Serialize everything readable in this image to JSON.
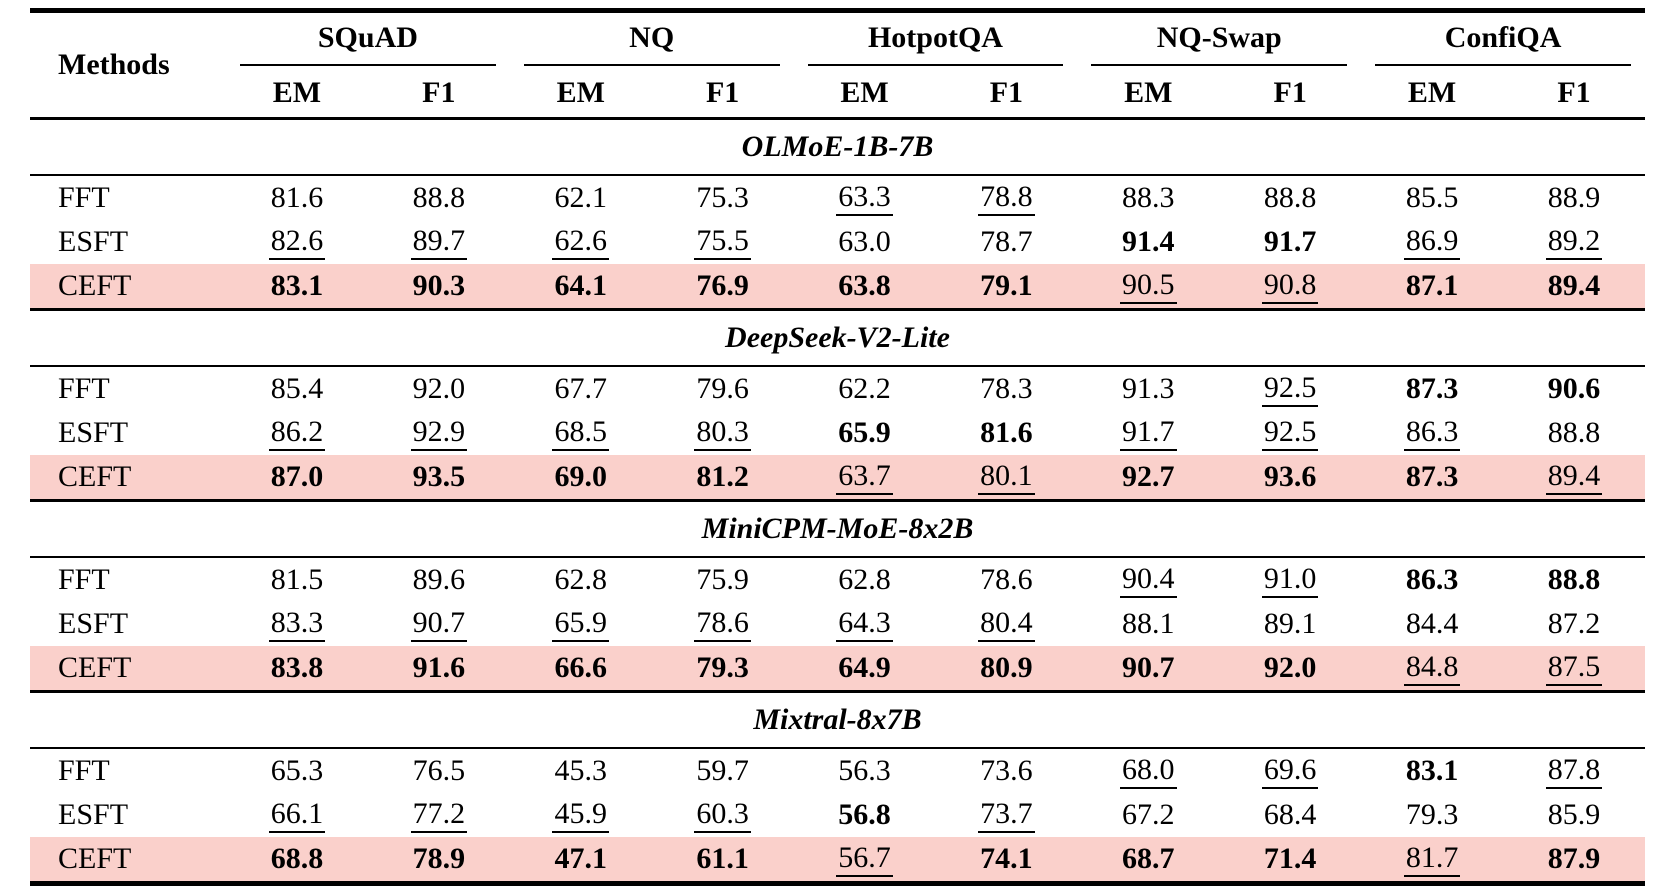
{
  "table": {
    "methods_header": "Methods",
    "datasets": [
      "SQuAD",
      "NQ",
      "HotpotQA",
      "NQ-Swap",
      "ConfiQA"
    ],
    "metric_headers": [
      "EM",
      "F1"
    ],
    "sections": [
      {
        "model": "OLMoE-1B-7B",
        "rows": [
          {
            "method": "FFT",
            "highlight": false,
            "cells": [
              [
                "81.6",
                ""
              ],
              [
                "88.8",
                ""
              ],
              [
                "62.1",
                ""
              ],
              [
                "75.3",
                ""
              ],
              [
                "63.3",
                "u"
              ],
              [
                "78.8",
                "u"
              ],
              [
                "88.3",
                ""
              ],
              [
                "88.8",
                ""
              ],
              [
                "85.5",
                ""
              ],
              [
                "88.9",
                ""
              ]
            ]
          },
          {
            "method": "ESFT",
            "highlight": false,
            "cells": [
              [
                "82.6",
                "u"
              ],
              [
                "89.7",
                "u"
              ],
              [
                "62.6",
                "u"
              ],
              [
                "75.5",
                "u"
              ],
              [
                "63.0",
                ""
              ],
              [
                "78.7",
                ""
              ],
              [
                "91.4",
                "b"
              ],
              [
                "91.7",
                "b"
              ],
              [
                "86.9",
                "u"
              ],
              [
                "89.2",
                "u"
              ]
            ]
          },
          {
            "method": "CEFT",
            "highlight": true,
            "cells": [
              [
                "83.1",
                "b"
              ],
              [
                "90.3",
                "b"
              ],
              [
                "64.1",
                "b"
              ],
              [
                "76.9",
                "b"
              ],
              [
                "63.8",
                "b"
              ],
              [
                "79.1",
                "b"
              ],
              [
                "90.5",
                "u"
              ],
              [
                "90.8",
                "u"
              ],
              [
                "87.1",
                "b"
              ],
              [
                "89.4",
                "b"
              ]
            ]
          }
        ]
      },
      {
        "model": "DeepSeek-V2-Lite",
        "rows": [
          {
            "method": "FFT",
            "highlight": false,
            "cells": [
              [
                "85.4",
                ""
              ],
              [
                "92.0",
                ""
              ],
              [
                "67.7",
                ""
              ],
              [
                "79.6",
                ""
              ],
              [
                "62.2",
                ""
              ],
              [
                "78.3",
                ""
              ],
              [
                "91.3",
                ""
              ],
              [
                "92.5",
                "u"
              ],
              [
                "87.3",
                "b"
              ],
              [
                "90.6",
                "b"
              ]
            ]
          },
          {
            "method": "ESFT",
            "highlight": false,
            "cells": [
              [
                "86.2",
                "u"
              ],
              [
                "92.9",
                "u"
              ],
              [
                "68.5",
                "u"
              ],
              [
                "80.3",
                "u"
              ],
              [
                "65.9",
                "b"
              ],
              [
                "81.6",
                "b"
              ],
              [
                "91.7",
                "u"
              ],
              [
                "92.5",
                "u"
              ],
              [
                "86.3",
                "u"
              ],
              [
                "88.8",
                ""
              ]
            ]
          },
          {
            "method": "CEFT",
            "highlight": true,
            "cells": [
              [
                "87.0",
                "b"
              ],
              [
                "93.5",
                "b"
              ],
              [
                "69.0",
                "b"
              ],
              [
                "81.2",
                "b"
              ],
              [
                "63.7",
                "u"
              ],
              [
                "80.1",
                "u"
              ],
              [
                "92.7",
                "b"
              ],
              [
                "93.6",
                "b"
              ],
              [
                "87.3",
                "b"
              ],
              [
                "89.4",
                "u"
              ]
            ]
          }
        ]
      },
      {
        "model": "MiniCPM-MoE-8x2B",
        "rows": [
          {
            "method": "FFT",
            "highlight": false,
            "cells": [
              [
                "81.5",
                ""
              ],
              [
                "89.6",
                ""
              ],
              [
                "62.8",
                ""
              ],
              [
                "75.9",
                ""
              ],
              [
                "62.8",
                ""
              ],
              [
                "78.6",
                ""
              ],
              [
                "90.4",
                "u"
              ],
              [
                "91.0",
                "u"
              ],
              [
                "86.3",
                "b"
              ],
              [
                "88.8",
                "b"
              ]
            ]
          },
          {
            "method": "ESFT",
            "highlight": false,
            "cells": [
              [
                "83.3",
                "u"
              ],
              [
                "90.7",
                "u"
              ],
              [
                "65.9",
                "u"
              ],
              [
                "78.6",
                "u"
              ],
              [
                "64.3",
                "u"
              ],
              [
                "80.4",
                "u"
              ],
              [
                "88.1",
                ""
              ],
              [
                "89.1",
                ""
              ],
              [
                "84.4",
                ""
              ],
              [
                "87.2",
                ""
              ]
            ]
          },
          {
            "method": "CEFT",
            "highlight": true,
            "cells": [
              [
                "83.8",
                "b"
              ],
              [
                "91.6",
                "b"
              ],
              [
                "66.6",
                "b"
              ],
              [
                "79.3",
                "b"
              ],
              [
                "64.9",
                "b"
              ],
              [
                "80.9",
                "b"
              ],
              [
                "90.7",
                "b"
              ],
              [
                "92.0",
                "b"
              ],
              [
                "84.8",
                "u"
              ],
              [
                "87.5",
                "u"
              ]
            ]
          }
        ]
      },
      {
        "model": "Mixtral-8x7B",
        "rows": [
          {
            "method": "FFT",
            "highlight": false,
            "cells": [
              [
                "65.3",
                ""
              ],
              [
                "76.5",
                ""
              ],
              [
                "45.3",
                ""
              ],
              [
                "59.7",
                ""
              ],
              [
                "56.3",
                ""
              ],
              [
                "73.6",
                ""
              ],
              [
                "68.0",
                "u"
              ],
              [
                "69.6",
                "u"
              ],
              [
                "83.1",
                "b"
              ],
              [
                "87.8",
                "u"
              ]
            ]
          },
          {
            "method": "ESFT",
            "highlight": false,
            "cells": [
              [
                "66.1",
                "u"
              ],
              [
                "77.2",
                "u"
              ],
              [
                "45.9",
                "u"
              ],
              [
                "60.3",
                "u"
              ],
              [
                "56.8",
                "b"
              ],
              [
                "73.7",
                "u"
              ],
              [
                "67.2",
                ""
              ],
              [
                "68.4",
                ""
              ],
              [
                "79.3",
                ""
              ],
              [
                "85.9",
                ""
              ]
            ]
          },
          {
            "method": "CEFT",
            "highlight": true,
            "cells": [
              [
                "68.8",
                "b"
              ],
              [
                "78.9",
                "b"
              ],
              [
                "47.1",
                "b"
              ],
              [
                "61.1",
                "b"
              ],
              [
                "56.7",
                "u"
              ],
              [
                "74.1",
                "b"
              ],
              [
                "68.7",
                "b"
              ],
              [
                "71.4",
                "b"
              ],
              [
                "81.7",
                "u"
              ],
              [
                "87.9",
                "b"
              ]
            ]
          }
        ]
      }
    ]
  },
  "colors": {
    "highlight_row": "#fad0cb",
    "rule_color": "#000000"
  }
}
